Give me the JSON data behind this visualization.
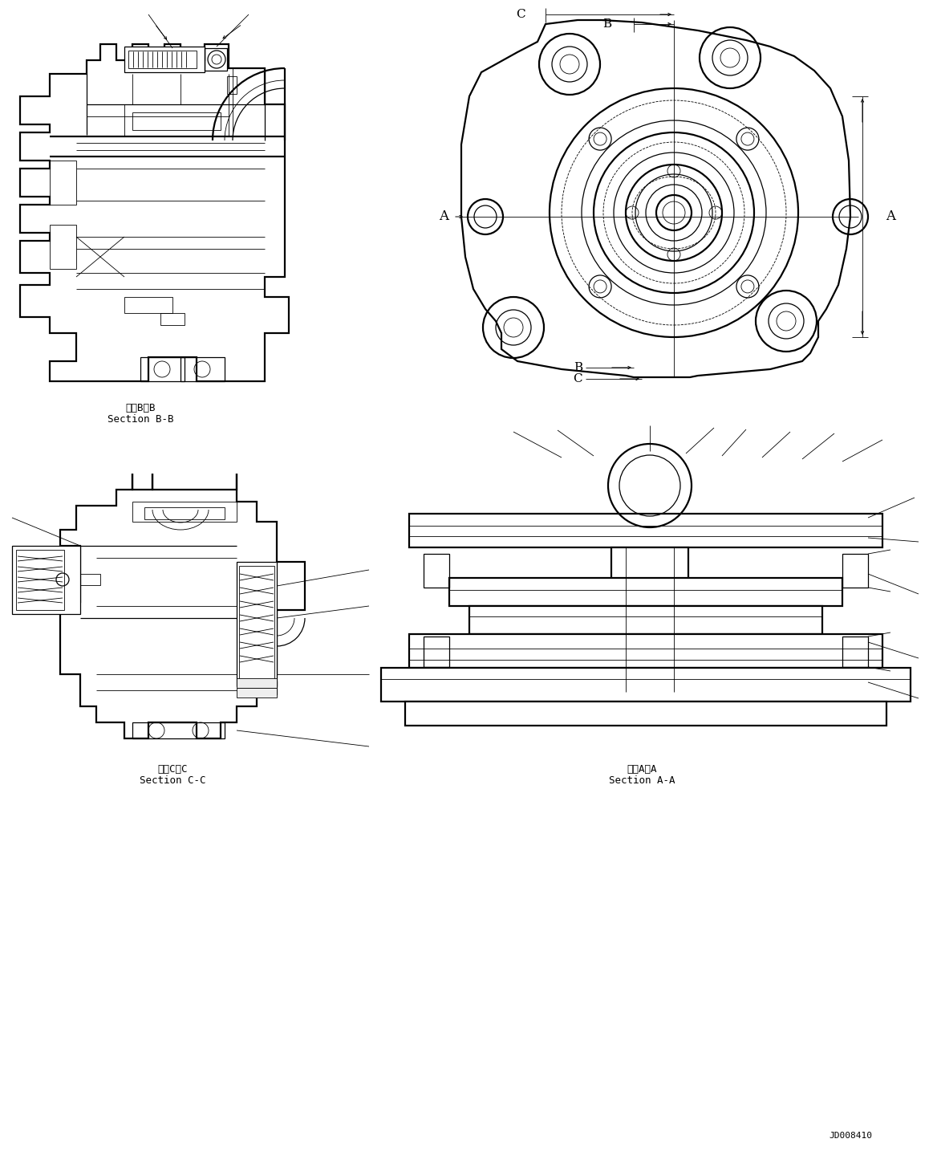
{
  "background_color": "#ffffff",
  "line_color": "#000000",
  "fig_width": 11.63,
  "fig_height": 14.34,
  "label_bb_ja": "断面B－B",
  "label_bb_en": "Section B-B",
  "label_cc_ja": "断面C－C",
  "label_cc_en": "Section C-C",
  "label_aa_ja": "断面A－A",
  "label_aa_en": "Section A-A",
  "watermark": "JD008410",
  "font_size_label": 9,
  "font_size_dim": 10,
  "font_size_watermark": 8,
  "lw_outer": 1.6,
  "lw_inner": 0.9,
  "lw_thin": 0.6
}
